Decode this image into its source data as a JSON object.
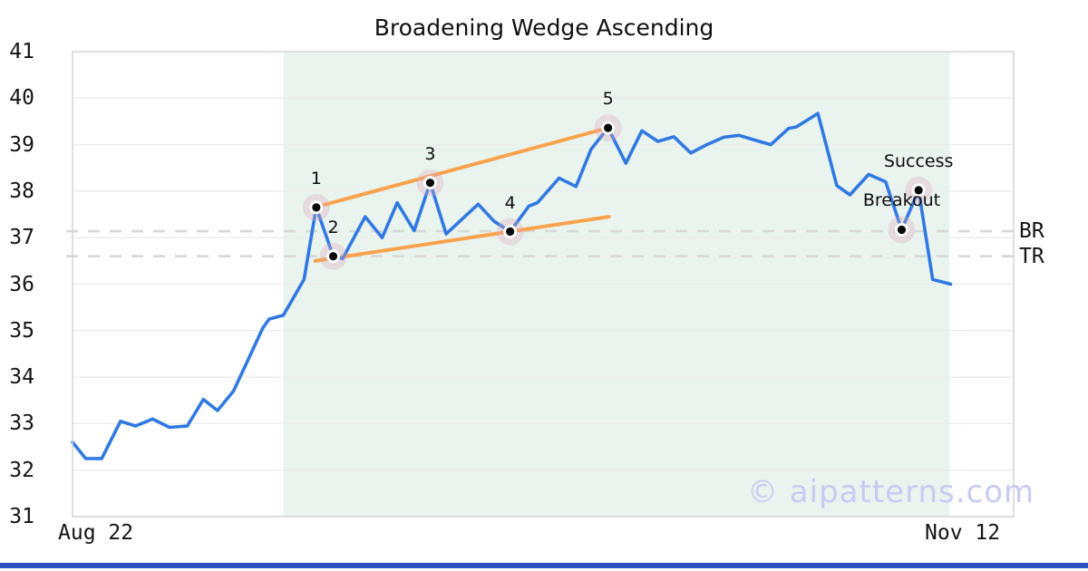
{
  "title": "Broadening Wedge Ascending",
  "watermark": "© aipatterns.com",
  "x_axis": {
    "left_label": "Aug 22",
    "right_label": "Nov 12"
  },
  "colors": {
    "price_line": "#3179e2",
    "trendline": "#f9a24b",
    "marker_halo": "rgba(221,168,184,0.33)",
    "marker_dot": "#0a0a0a",
    "marker_ring": "#ffffff",
    "shade": "#e9f4ef",
    "grid": "#ebebeb",
    "border": "#d2d2d2",
    "level_dash": "#d8d8d8",
    "bottom_bar": "#2b50c0",
    "watermark": "#c8cbf3"
  },
  "chart_data": {
    "type": "line",
    "title": "Broadening Wedge Ascending",
    "xlabel": "",
    "ylabel": "",
    "ylim": [
      31,
      41
    ],
    "y_ticks": [
      31,
      32,
      33,
      34,
      35,
      36,
      37,
      38,
      39,
      40,
      41
    ],
    "x_tick_labels": [
      "Aug 22",
      "Nov 12"
    ],
    "grid": true,
    "legend": false,
    "shaded_region": {
      "x1": 0.224,
      "x2": 0.932
    },
    "levels": [
      {
        "label": "BR",
        "value": 37.14
      },
      {
        "label": "TR",
        "value": 36.6
      }
    ],
    "trendlines": [
      {
        "name": "upper",
        "x1": 0.259,
        "v1": 37.66,
        "x2": 0.569,
        "v2": 39.36
      },
      {
        "name": "lower",
        "x1": 0.258,
        "v1": 36.5,
        "x2": 0.57,
        "v2": 37.45
      }
    ],
    "markers": [
      {
        "label": "1",
        "x": 0.259,
        "value": 37.65
      },
      {
        "label": "2",
        "x": 0.277,
        "value": 36.6
      },
      {
        "label": "3",
        "x": 0.38,
        "value": 38.18
      },
      {
        "label": "4",
        "x": 0.465,
        "value": 37.13
      },
      {
        "label": "5",
        "x": 0.569,
        "value": 39.36
      },
      {
        "label": "Breakout",
        "x": 0.881,
        "value": 37.17
      },
      {
        "label": "Success",
        "x": 0.899,
        "value": 38.02
      }
    ],
    "series": [
      {
        "name": "price",
        "points": [
          [
            0.0,
            32.6
          ],
          [
            0.014,
            32.25
          ],
          [
            0.031,
            32.25
          ],
          [
            0.051,
            33.05
          ],
          [
            0.067,
            32.95
          ],
          [
            0.085,
            33.1
          ],
          [
            0.103,
            32.92
          ],
          [
            0.122,
            32.95
          ],
          [
            0.139,
            33.52
          ],
          [
            0.154,
            33.28
          ],
          [
            0.171,
            33.7
          ],
          [
            0.186,
            34.35
          ],
          [
            0.202,
            35.05
          ],
          [
            0.209,
            35.25
          ],
          [
            0.224,
            35.33
          ],
          [
            0.246,
            36.1
          ],
          [
            0.259,
            37.65
          ],
          [
            0.277,
            36.6
          ],
          [
            0.287,
            36.55
          ],
          [
            0.311,
            37.45
          ],
          [
            0.329,
            37.0
          ],
          [
            0.345,
            37.75
          ],
          [
            0.363,
            37.15
          ],
          [
            0.38,
            38.18
          ],
          [
            0.397,
            37.08
          ],
          [
            0.414,
            37.4
          ],
          [
            0.431,
            37.72
          ],
          [
            0.448,
            37.35
          ],
          [
            0.465,
            37.13
          ],
          [
            0.485,
            37.68
          ],
          [
            0.494,
            37.75
          ],
          [
            0.517,
            38.28
          ],
          [
            0.535,
            38.1
          ],
          [
            0.551,
            38.9
          ],
          [
            0.569,
            39.36
          ],
          [
            0.588,
            38.6
          ],
          [
            0.605,
            39.3
          ],
          [
            0.622,
            39.07
          ],
          [
            0.639,
            39.17
          ],
          [
            0.657,
            38.82
          ],
          [
            0.674,
            39.0
          ],
          [
            0.692,
            39.16
          ],
          [
            0.708,
            39.2
          ],
          [
            0.728,
            39.08
          ],
          [
            0.742,
            39.0
          ],
          [
            0.761,
            39.35
          ],
          [
            0.769,
            39.38
          ],
          [
            0.792,
            39.67
          ],
          [
            0.812,
            38.12
          ],
          [
            0.826,
            37.92
          ],
          [
            0.846,
            38.36
          ],
          [
            0.864,
            38.2
          ],
          [
            0.881,
            37.17
          ],
          [
            0.899,
            38.02
          ],
          [
            0.914,
            36.1
          ],
          [
            0.933,
            36.0
          ]
        ]
      }
    ]
  }
}
